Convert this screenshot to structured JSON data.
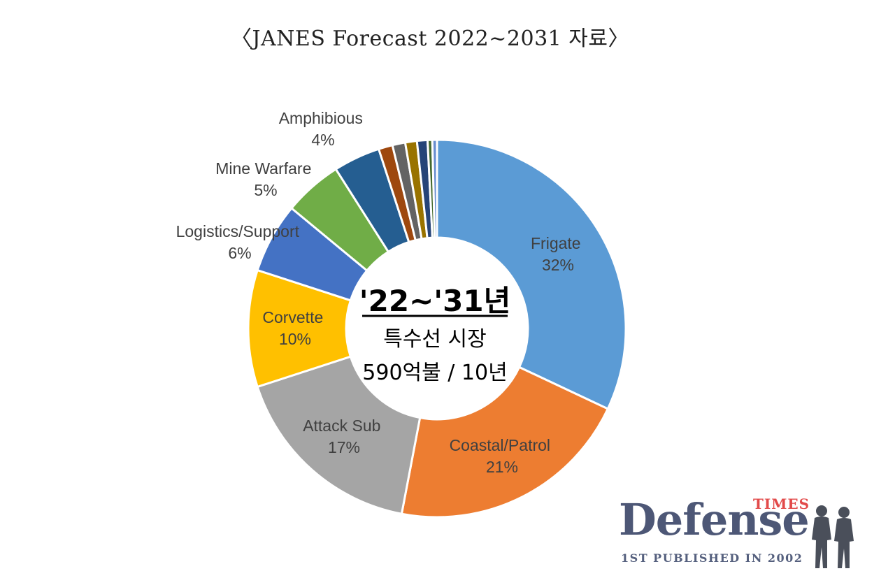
{
  "page_title": "〈JANES Forecast 2022~2031 자료〉",
  "center": {
    "line1": "'22~'31년",
    "line2": "특수선 시장",
    "line3": "590억불 / 10년"
  },
  "logo": {
    "main": "Defense",
    "times": "TIMES",
    "sub": "1ST PUBLISHED IN 2002"
  },
  "chart_data": {
    "type": "pie",
    "variant": "donut",
    "categories": [
      "Frigate",
      "Coastal/Patrol",
      "Attack Sub",
      "Corvette",
      "Logistics/Support",
      "Mine Warfare",
      "Amphibious",
      "",
      "",
      "",
      "",
      "",
      ""
    ],
    "values": [
      32,
      21,
      17,
      10,
      6,
      5,
      4,
      1.2,
      1.1,
      1.0,
      0.9,
      0.4,
      0.4
    ],
    "labels": [
      "32%",
      "21%",
      "17%",
      "10%",
      "6%",
      "5%",
      "4%",
      "",
      "",
      "",
      "",
      "",
      ""
    ],
    "colors": [
      "#5b9bd5",
      "#ed7d31",
      "#a5a5a5",
      "#ffc000",
      "#4472c4",
      "#70ad47",
      "#255e91",
      "#9e480e",
      "#636363",
      "#997300",
      "#264478",
      "#43682b",
      "#698ed0"
    ],
    "legend": "none"
  }
}
